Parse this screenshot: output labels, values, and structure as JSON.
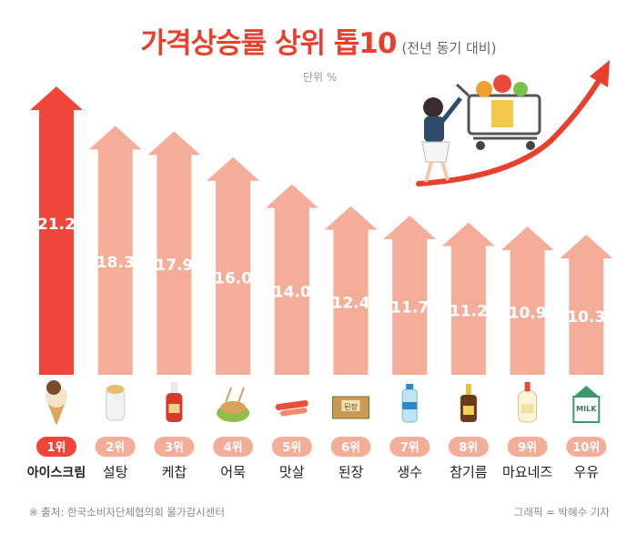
{
  "title": "가격상승률 상위 톱10",
  "subtitle": "(전년 동기 대비)",
  "unit_label": "단위 %",
  "source": "※ 출처: 한국소비자단체협의회 물가감시센터",
  "credit": "그래픽 = 박혜수 기자",
  "colors": {
    "top": "#f0463a",
    "rest": "#f4ad98",
    "badge_top": "#f0463a",
    "badge_rest": "#f4ad98",
    "title": "#e8402c"
  },
  "chart_data": {
    "type": "bar",
    "title": "가격상승률 상위 톱10",
    "subtitle": "(전년 동기 대비)",
    "unit": "%",
    "categories": [
      "아이스크림",
      "설탕",
      "케찹",
      "어묵",
      "맛살",
      "된장",
      "생수",
      "참기름",
      "마요네즈",
      "우유"
    ],
    "ranks": [
      "1위",
      "2위",
      "3위",
      "4위",
      "5위",
      "6위",
      "7위",
      "8위",
      "9위",
      "10위"
    ],
    "values": [
      21.2,
      18.3,
      17.9,
      16.0,
      14.0,
      12.4,
      11.7,
      11.2,
      10.9,
      10.3
    ],
    "value_labels": [
      "21.2",
      "18.3",
      "17.9",
      "16.0",
      "14.0",
      "12.4",
      "11.7",
      "11.2",
      "10.9",
      "10.3"
    ],
    "icons": [
      "ice-cream-cone-icon",
      "sugar-jar-icon",
      "ketchup-bottle-icon",
      "fish-cake-skewer-icon",
      "crab-stick-icon",
      "doenjang-box-icon",
      "water-bottle-icon",
      "sesame-oil-bottle-icon",
      "mayonnaise-bottle-icon",
      "milk-carton-icon"
    ],
    "icon_texts": {
      "doenjang": "된장",
      "milk": "MILK"
    },
    "ylim": [
      0,
      22
    ]
  }
}
